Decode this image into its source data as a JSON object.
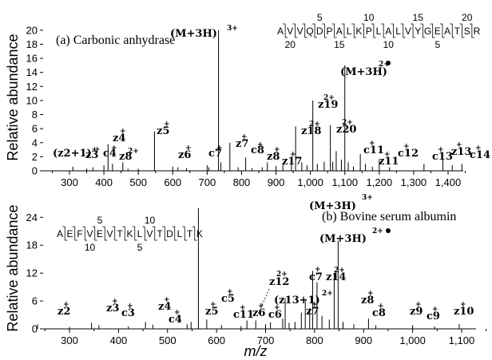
{
  "ylabel": "Relative abundance",
  "xlabel": "m/z",
  "chart_data": [
    {
      "type": "bar",
      "title": "(a) Carbonic anhydrase",
      "xlim": [
        250,
        1460
      ],
      "ylim": [
        0,
        21
      ],
      "xticks": [
        300,
        400,
        500,
        600,
        700,
        800,
        900,
        1000,
        1100,
        1200,
        1300,
        1400
      ],
      "xtick_labels": [
        "300",
        "400",
        "500",
        "600",
        "700",
        "800",
        "900",
        "1,000",
        "1,100",
        "1,200",
        "1,300",
        "1,400"
      ],
      "yticks": [
        0,
        2,
        4,
        6,
        8,
        10,
        12,
        14,
        16,
        18,
        20
      ],
      "peaks": [
        {
          "mz": 310,
          "y": 0.6
        },
        {
          "mz": 350,
          "y": 0.3
        },
        {
          "mz": 368,
          "y": 0.5
        },
        {
          "mz": 400,
          "y": 0.8
        },
        {
          "mz": 412,
          "y": 3.8
        },
        {
          "mz": 425,
          "y": 1.0
        },
        {
          "mz": 455,
          "y": 1.2
        },
        {
          "mz": 470,
          "y": 0.3
        },
        {
          "mz": 500,
          "y": 0.3
        },
        {
          "mz": 547,
          "y": 5.6
        },
        {
          "mz": 600,
          "y": 0.6
        },
        {
          "mz": 615,
          "y": 0.5
        },
        {
          "mz": 640,
          "y": 0.4
        },
        {
          "mz": 700,
          "y": 0.8
        },
        {
          "mz": 705,
          "y": 0.5
        },
        {
          "mz": 733,
          "y": 20.0
        },
        {
          "mz": 740,
          "y": 1.2
        },
        {
          "mz": 766,
          "y": 4.0
        },
        {
          "mz": 790,
          "y": 0.5
        },
        {
          "mz": 812,
          "y": 1.9
        },
        {
          "mz": 830,
          "y": 0.4
        },
        {
          "mz": 860,
          "y": 0.5
        },
        {
          "mz": 875,
          "y": 1.2
        },
        {
          "mz": 900,
          "y": 0.7
        },
        {
          "mz": 920,
          "y": 1.0
        },
        {
          "mz": 945,
          "y": 1.0
        },
        {
          "mz": 957,
          "y": 6.3
        },
        {
          "mz": 975,
          "y": 1.2
        },
        {
          "mz": 990,
          "y": 0.8
        },
        {
          "mz": 1007,
          "y": 10.0
        },
        {
          "mz": 1020,
          "y": 1.0
        },
        {
          "mz": 1040,
          "y": 1.3
        },
        {
          "mz": 1058,
          "y": 6.5
        },
        {
          "mz": 1065,
          "y": 1.3
        },
        {
          "mz": 1075,
          "y": 2.8
        },
        {
          "mz": 1090,
          "y": 1.6
        },
        {
          "mz": 1100,
          "y": 15.0
        },
        {
          "mz": 1110,
          "y": 1.2
        },
        {
          "mz": 1125,
          "y": 0.6
        },
        {
          "mz": 1145,
          "y": 2.4
        },
        {
          "mz": 1160,
          "y": 1.0
        },
        {
          "mz": 1180,
          "y": 0.6
        },
        {
          "mz": 1200,
          "y": 1.5
        },
        {
          "mz": 1230,
          "y": 0.5
        },
        {
          "mz": 1330,
          "y": 1.0
        },
        {
          "mz": 1385,
          "y": 1.7
        },
        {
          "mz": 1412,
          "y": 0.8
        },
        {
          "mz": 1440,
          "y": 1.0
        }
      ]
    },
    {
      "type": "bar",
      "title": "(b) Bovine serum albumin",
      "xlim": [
        200,
        1150
      ],
      "ylim": [
        0,
        28
      ],
      "xticks": [
        300,
        400,
        500,
        600,
        700,
        800,
        900,
        1000,
        1100
      ],
      "xtick_labels": [
        "300",
        "400",
        "500",
        "600",
        "700",
        "800",
        "900",
        "1,000",
        "1,100"
      ],
      "yticks": [
        0,
        6,
        12,
        18,
        24
      ],
      "peaks": [
        {
          "mz": 235,
          "y": 1.0
        },
        {
          "mz": 300,
          "y": 0.4
        },
        {
          "mz": 345,
          "y": 1.3
        },
        {
          "mz": 360,
          "y": 0.8
        },
        {
          "mz": 420,
          "y": 0.5
        },
        {
          "mz": 455,
          "y": 1.5
        },
        {
          "mz": 470,
          "y": 0.9
        },
        {
          "mz": 540,
          "y": 1.0
        },
        {
          "mz": 548,
          "y": 1.5
        },
        {
          "mz": 563,
          "y": 26.0
        },
        {
          "mz": 580,
          "y": 2.0
        },
        {
          "mz": 610,
          "y": 0.8
        },
        {
          "mz": 650,
          "y": 0.6
        },
        {
          "mz": 662,
          "y": 1.8
        },
        {
          "mz": 680,
          "y": 1.8
        },
        {
          "mz": 700,
          "y": 1.0
        },
        {
          "mz": 710,
          "y": 1.4
        },
        {
          "mz": 735,
          "y": 2.2
        },
        {
          "mz": 740,
          "y": 6.5
        },
        {
          "mz": 748,
          "y": 1.3
        },
        {
          "mz": 760,
          "y": 1.5
        },
        {
          "mz": 773,
          "y": 3.5
        },
        {
          "mz": 781,
          "y": 6.0
        },
        {
          "mz": 790,
          "y": 4.5
        },
        {
          "mz": 796,
          "y": 12.5
        },
        {
          "mz": 805,
          "y": 10.0
        },
        {
          "mz": 815,
          "y": 2.8
        },
        {
          "mz": 830,
          "y": 2.0
        },
        {
          "mz": 840,
          "y": 12.0
        },
        {
          "mz": 848,
          "y": 19.0
        },
        {
          "mz": 858,
          "y": 1.5
        },
        {
          "mz": 880,
          "y": 1.0
        },
        {
          "mz": 910,
          "y": 2.2
        },
        {
          "mz": 925,
          "y": 0.8
        },
        {
          "mz": 1000,
          "y": 0.8
        },
        {
          "mz": 1045,
          "y": 0.5
        },
        {
          "mz": 1095,
          "y": 1.0
        }
      ]
    }
  ],
  "panel_a": {
    "peak_labels": {
      "z2p1": "(z2+1)",
      "z3": "z3",
      "c4": "c4",
      "z4": "z4",
      "z8_2": "z8",
      "z5": "z5",
      "z6": "z6",
      "c7": "c7",
      "mh3": "(M+3H)",
      "z7": "z7",
      "c8": "c8",
      "z8": "z8",
      "z17": "z17",
      "z18": "z18",
      "z19": "z19",
      "z20": "z20",
      "mh3r": "(M+3H)",
      "c11": "c11",
      "z11": "z11",
      "c12": "c12",
      "c13": "c13",
      "z13": "z13",
      "c14": "c14"
    },
    "sequence": {
      "letters": [
        "A",
        "V",
        "V",
        "Q",
        "D",
        "P",
        "A",
        "L",
        "K",
        "P",
        "L",
        "A",
        "L",
        "V",
        "Y",
        "G",
        "E",
        "A",
        "T",
        "S",
        "R"
      ],
      "top_numbers": [
        "5",
        "10",
        "15",
        "20"
      ],
      "bottom_numbers": [
        "20",
        "15",
        "10",
        "5"
      ]
    }
  },
  "panel_b": {
    "peak_labels": {
      "mh3": "(M+3H)",
      "mh3r": "(M+3H)",
      "z2": "z2",
      "z3": "z3",
      "c3": "c3",
      "z4": "z4",
      "c4": "c4",
      "z5": "z5",
      "c5": "c5",
      "c11": "c11",
      "z12": "z12",
      "z6": "z6",
      "c6": "c6",
      "z13p1": "(z13+1)",
      "z7": "z7",
      "c7": "c7",
      "z14": "z14",
      "z8": "z8",
      "c8": "c8",
      "z9": "z9",
      "c9": "c9",
      "z10": "z10"
    },
    "sequence": {
      "letters": [
        "A",
        "E",
        "F",
        "V",
        "E",
        "V",
        "T",
        "K",
        "L",
        "V",
        "T",
        "D",
        "L",
        "T",
        "K"
      ],
      "top_numbers": [
        "5",
        "10"
      ],
      "bottom_numbers": [
        "10",
        "5"
      ]
    }
  }
}
